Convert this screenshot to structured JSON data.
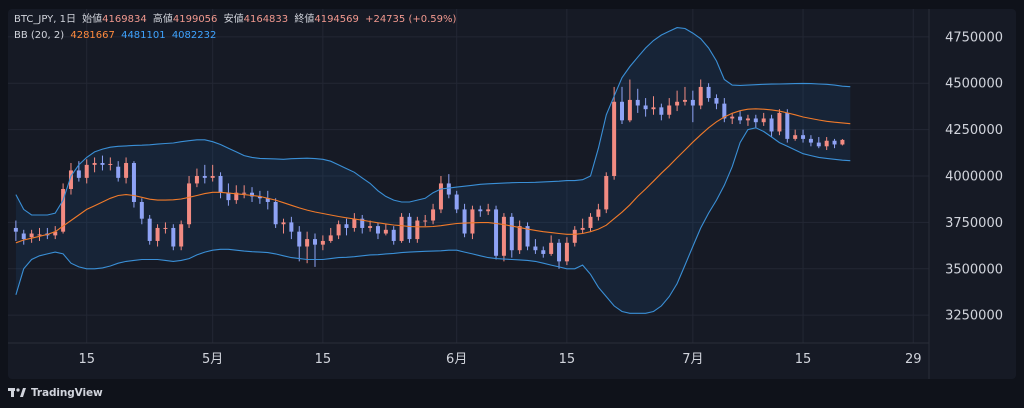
{
  "legend": {
    "symbol": "BTC_JPY, 1日",
    "open_label": "始値",
    "open": "4169834",
    "high_label": "高値",
    "high": "4199056",
    "low_label": "安値",
    "low": "4164833",
    "close_label": "終値",
    "close": "4194569",
    "change": "+24735 (+0.59%)",
    "bb_label": "BB (20, 2)",
    "bb_middle": "4281667",
    "bb_upper": "4481101",
    "bb_lower": "4082232"
  },
  "footer": {
    "brand": "TradingView"
  },
  "colors": {
    "up": "#f28b82",
    "down": "#8fa3f5",
    "bb_mid": "#f07a2a",
    "bb_band": "#3a8fd6",
    "background": "#161a25"
  },
  "chart_data": {
    "type": "candlestick",
    "y_ticks": [
      "4750000",
      "4500000",
      "4250000",
      "4000000",
      "3750000",
      "3500000",
      "3250000"
    ],
    "ylim": [
      3100000,
      4900000
    ],
    "x_ticks": [
      {
        "label": "15",
        "index": 9
      },
      {
        "label": "5月",
        "index": 25
      },
      {
        "label": "15",
        "index": 39
      },
      {
        "label": "6月",
        "index": 56
      },
      {
        "label": "15",
        "index": 70
      },
      {
        "label": "7月",
        "index": 86
      },
      {
        "label": "15",
        "index": 100
      },
      {
        "label": "29",
        "index": 114
      }
    ],
    "index_range": [
      -1,
      116
    ],
    "candles": [
      [
        3720000,
        3700000,
        3760000,
        3650000
      ],
      [
        3690000,
        3660000,
        3710000,
        3630000
      ],
      [
        3670000,
        3690000,
        3710000,
        3640000
      ],
      [
        3680000,
        3685000,
        3720000,
        3650000
      ],
      [
        3690000,
        3680000,
        3720000,
        3660000
      ],
      [
        3680000,
        3700000,
        3730000,
        3660000
      ],
      [
        3700000,
        3930000,
        3960000,
        3690000
      ],
      [
        3930000,
        4030000,
        4070000,
        3900000
      ],
      [
        4030000,
        3990000,
        4080000,
        3970000
      ],
      [
        3990000,
        4060000,
        4090000,
        3960000
      ],
      [
        4060000,
        4070000,
        4100000,
        4020000
      ],
      [
        4070000,
        4060000,
        4110000,
        4030000
      ],
      [
        4060000,
        4065000,
        4100000,
        4030000
      ],
      [
        4050000,
        3990000,
        4080000,
        3970000
      ],
      [
        3990000,
        4070000,
        4100000,
        3960000
      ],
      [
        4070000,
        3860000,
        4080000,
        3830000
      ],
      [
        3860000,
        3770000,
        3880000,
        3740000
      ],
      [
        3770000,
        3650000,
        3790000,
        3630000
      ],
      [
        3650000,
        3720000,
        3740000,
        3620000
      ],
      [
        3720000,
        3720000,
        3750000,
        3690000
      ],
      [
        3720000,
        3620000,
        3740000,
        3600000
      ],
      [
        3620000,
        3740000,
        3760000,
        3600000
      ],
      [
        3740000,
        3960000,
        4000000,
        3720000
      ],
      [
        3960000,
        4000000,
        4040000,
        3940000
      ],
      [
        4000000,
        3990000,
        4060000,
        3960000
      ],
      [
        3990000,
        4000000,
        4060000,
        3970000
      ],
      [
        4000000,
        3910000,
        4020000,
        3880000
      ],
      [
        3910000,
        3870000,
        3960000,
        3840000
      ],
      [
        3870000,
        3910000,
        3950000,
        3850000
      ],
      [
        3910000,
        3910000,
        3950000,
        3880000
      ],
      [
        3910000,
        3890000,
        3940000,
        3860000
      ],
      [
        3890000,
        3880000,
        3920000,
        3850000
      ],
      [
        3880000,
        3860000,
        3920000,
        3820000
      ],
      [
        3860000,
        3740000,
        3880000,
        3720000
      ],
      [
        3740000,
        3750000,
        3770000,
        3690000
      ],
      [
        3750000,
        3700000,
        3780000,
        3660000
      ],
      [
        3700000,
        3620000,
        3730000,
        3540000
      ],
      [
        3620000,
        3660000,
        3700000,
        3530000
      ],
      [
        3660000,
        3630000,
        3690000,
        3510000
      ],
      [
        3630000,
        3650000,
        3680000,
        3600000
      ],
      [
        3650000,
        3680000,
        3720000,
        3640000
      ],
      [
        3680000,
        3740000,
        3760000,
        3660000
      ],
      [
        3740000,
        3720000,
        3770000,
        3680000
      ],
      [
        3720000,
        3770000,
        3800000,
        3700000
      ],
      [
        3770000,
        3720000,
        3790000,
        3690000
      ],
      [
        3720000,
        3730000,
        3760000,
        3700000
      ],
      [
        3730000,
        3690000,
        3750000,
        3660000
      ],
      [
        3690000,
        3710000,
        3740000,
        3680000
      ],
      [
        3710000,
        3650000,
        3730000,
        3630000
      ],
      [
        3650000,
        3780000,
        3800000,
        3640000
      ],
      [
        3780000,
        3660000,
        3800000,
        3640000
      ],
      [
        3660000,
        3760000,
        3780000,
        3640000
      ],
      [
        3760000,
        3760000,
        3790000,
        3730000
      ],
      [
        3760000,
        3820000,
        3850000,
        3740000
      ],
      [
        3820000,
        3960000,
        4000000,
        3800000
      ],
      [
        3960000,
        3900000,
        4010000,
        3880000
      ],
      [
        3900000,
        3820000,
        3920000,
        3800000
      ],
      [
        3820000,
        3690000,
        3850000,
        3670000
      ],
      [
        3690000,
        3820000,
        3840000,
        3660000
      ],
      [
        3820000,
        3810000,
        3840000,
        3780000
      ],
      [
        3810000,
        3820000,
        3850000,
        3790000
      ],
      [
        3820000,
        3570000,
        3840000,
        3550000
      ],
      [
        3570000,
        3780000,
        3800000,
        3540000
      ],
      [
        3780000,
        3600000,
        3800000,
        3560000
      ],
      [
        3600000,
        3730000,
        3760000,
        3580000
      ],
      [
        3730000,
        3620000,
        3750000,
        3600000
      ],
      [
        3620000,
        3600000,
        3660000,
        3580000
      ],
      [
        3600000,
        3580000,
        3620000,
        3560000
      ],
      [
        3580000,
        3640000,
        3680000,
        3570000
      ],
      [
        3640000,
        3540000,
        3660000,
        3500000
      ],
      [
        3540000,
        3640000,
        3670000,
        3520000
      ],
      [
        3640000,
        3710000,
        3730000,
        3620000
      ],
      [
        3710000,
        3720000,
        3770000,
        3690000
      ],
      [
        3720000,
        3780000,
        3800000,
        3700000
      ],
      [
        3780000,
        3820000,
        3850000,
        3760000
      ],
      [
        3820000,
        4000000,
        4020000,
        3800000
      ],
      [
        4000000,
        4400000,
        4480000,
        3980000
      ],
      [
        4400000,
        4300000,
        4480000,
        4280000
      ],
      [
        4300000,
        4410000,
        4520000,
        4290000
      ],
      [
        4410000,
        4380000,
        4470000,
        4340000
      ],
      [
        4380000,
        4360000,
        4420000,
        4320000
      ],
      [
        4360000,
        4370000,
        4430000,
        4330000
      ],
      [
        4370000,
        4330000,
        4390000,
        4300000
      ],
      [
        4330000,
        4380000,
        4420000,
        4310000
      ],
      [
        4380000,
        4400000,
        4460000,
        4350000
      ],
      [
        4400000,
        4410000,
        4480000,
        4380000
      ],
      [
        4410000,
        4380000,
        4460000,
        4290000
      ],
      [
        4380000,
        4480000,
        4520000,
        4360000
      ],
      [
        4480000,
        4420000,
        4500000,
        4400000
      ],
      [
        4420000,
        4390000,
        4440000,
        4360000
      ],
      [
        4390000,
        4310000,
        4420000,
        4290000
      ],
      [
        4310000,
        4320000,
        4340000,
        4280000
      ],
      [
        4320000,
        4300000,
        4350000,
        4280000
      ],
      [
        4300000,
        4310000,
        4330000,
        4270000
      ],
      [
        4310000,
        4290000,
        4330000,
        4260000
      ],
      [
        4290000,
        4310000,
        4340000,
        4270000
      ],
      [
        4310000,
        4240000,
        4330000,
        4210000
      ],
      [
        4240000,
        4340000,
        4360000,
        4220000
      ],
      [
        4340000,
        4200000,
        4360000,
        4180000
      ],
      [
        4200000,
        4220000,
        4250000,
        4190000
      ],
      [
        4220000,
        4200000,
        4250000,
        4180000
      ],
      [
        4200000,
        4180000,
        4220000,
        4160000
      ],
      [
        4180000,
        4160000,
        4210000,
        4150000
      ],
      [
        4160000,
        4190000,
        4210000,
        4140000
      ],
      [
        4190000,
        4170000,
        4200000,
        4150000
      ],
      [
        4169834,
        4194569,
        4199056,
        4164833
      ]
    ],
    "bb_middle": [
      3640000,
      3655000,
      3665000,
      3675000,
      3685000,
      3700000,
      3730000,
      3760000,
      3790000,
      3820000,
      3840000,
      3860000,
      3880000,
      3895000,
      3900000,
      3895000,
      3885000,
      3875000,
      3870000,
      3870000,
      3872000,
      3876000,
      3885000,
      3895000,
      3905000,
      3912000,
      3912000,
      3908000,
      3904000,
      3900000,
      3895000,
      3890000,
      3880000,
      3870000,
      3856000,
      3842000,
      3828000,
      3816000,
      3806000,
      3798000,
      3790000,
      3782000,
      3775000,
      3768000,
      3762000,
      3755000,
      3748000,
      3742000,
      3736000,
      3732000,
      3728000,
      3726000,
      3726000,
      3728000,
      3732000,
      3738000,
      3744000,
      3746000,
      3748000,
      3749000,
      3749000,
      3744000,
      3738000,
      3730000,
      3722000,
      3714000,
      3707000,
      3700000,
      3695000,
      3690000,
      3686000,
      3686000,
      3690000,
      3700000,
      3714000,
      3735000,
      3770000,
      3805000,
      3845000,
      3890000,
      3930000,
      3972000,
      4015000,
      4055000,
      4098000,
      4140000,
      4182000,
      4222000,
      4260000,
      4292000,
      4318000,
      4338000,
      4352000,
      4360000,
      4362000,
      4360000,
      4356000,
      4350000,
      4340000,
      4330000,
      4318000,
      4310000,
      4302000,
      4295000,
      4290000,
      4286000,
      4281667
    ],
    "bb_upper": [
      3900000,
      3820000,
      3790000,
      3790000,
      3790000,
      3800000,
      3870000,
      4000000,
      4060000,
      4100000,
      4130000,
      4145000,
      4155000,
      4160000,
      4162000,
      4165000,
      4166000,
      4168000,
      4172000,
      4175000,
      4178000,
      4185000,
      4190000,
      4195000,
      4195000,
      4185000,
      4170000,
      4150000,
      4130000,
      4110000,
      4100000,
      4095000,
      4093000,
      4092000,
      4090000,
      4093000,
      4095000,
      4096000,
      4094000,
      4090000,
      4080000,
      4060000,
      4040000,
      4020000,
      3990000,
      3960000,
      3920000,
      3890000,
      3870000,
      3860000,
      3860000,
      3870000,
      3880000,
      3910000,
      3930000,
      3935000,
      3940000,
      3945000,
      3950000,
      3955000,
      3958000,
      3960000,
      3962000,
      3964000,
      3965000,
      3965000,
      3966000,
      3968000,
      3970000,
      3972000,
      3975000,
      3975000,
      3980000,
      4000000,
      4150000,
      4330000,
      4430000,
      4530000,
      4590000,
      4640000,
      4690000,
      4730000,
      4760000,
      4780000,
      4800000,
      4795000,
      4770000,
      4740000,
      4690000,
      4620000,
      4520000,
      4490000,
      4488000,
      4490000,
      4492000,
      4494000,
      4495000,
      4496000,
      4497000,
      4498000,
      4499000,
      4498000,
      4496000,
      4494000,
      4490000,
      4484000,
      4481101
    ],
    "bb_lower": [
      3360000,
      3500000,
      3550000,
      3570000,
      3580000,
      3590000,
      3580000,
      3530000,
      3510000,
      3500000,
      3500000,
      3505000,
      3515000,
      3530000,
      3540000,
      3545000,
      3550000,
      3550000,
      3550000,
      3545000,
      3540000,
      3545000,
      3555000,
      3575000,
      3590000,
      3600000,
      3605000,
      3605000,
      3600000,
      3595000,
      3592000,
      3590000,
      3587000,
      3580000,
      3570000,
      3560000,
      3555000,
      3550000,
      3550000,
      3550000,
      3555000,
      3560000,
      3562000,
      3565000,
      3570000,
      3575000,
      3576000,
      3580000,
      3583000,
      3587000,
      3590000,
      3592000,
      3594000,
      3595000,
      3597000,
      3600000,
      3600000,
      3590000,
      3580000,
      3570000,
      3560000,
      3555000,
      3552000,
      3550000,
      3548000,
      3545000,
      3540000,
      3530000,
      3520000,
      3510000,
      3500000,
      3500000,
      3520000,
      3470000,
      3400000,
      3350000,
      3300000,
      3270000,
      3260000,
      3260000,
      3260000,
      3270000,
      3300000,
      3350000,
      3420000,
      3520000,
      3620000,
      3720000,
      3800000,
      3870000,
      3950000,
      4050000,
      4180000,
      4250000,
      4260000,
      4240000,
      4210000,
      4180000,
      4160000,
      4140000,
      4120000,
      4110000,
      4100000,
      4095000,
      4090000,
      4085000,
      4082232
    ]
  }
}
